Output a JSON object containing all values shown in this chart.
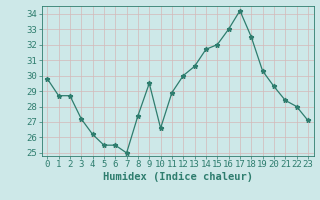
{
  "x": [
    0,
    1,
    2,
    3,
    4,
    5,
    6,
    7,
    8,
    9,
    10,
    11,
    12,
    13,
    14,
    15,
    16,
    17,
    18,
    19,
    20,
    21,
    22,
    23
  ],
  "y": [
    29.8,
    28.7,
    28.7,
    27.2,
    26.2,
    25.5,
    25.5,
    25.0,
    27.4,
    29.5,
    26.6,
    28.9,
    30.0,
    30.6,
    31.7,
    32.0,
    33.0,
    34.2,
    32.5,
    30.3,
    29.3,
    28.4,
    28.0,
    27.1
  ],
  "xlabel": "Humidex (Indice chaleur)",
  "line_color": "#2e7d6e",
  "marker": "*",
  "bg_color": "#cde8e8",
  "grid_color_major": "#b8d0d0",
  "grid_color_minor": "#c8dede",
  "axis_color": "#2e7d6e",
  "tick_color": "#2e7d6e",
  "ylim": [
    24.8,
    34.5
  ],
  "xlim": [
    -0.5,
    23.5
  ],
  "yticks": [
    25,
    26,
    27,
    28,
    29,
    30,
    31,
    32,
    33,
    34
  ],
  "xticks": [
    0,
    1,
    2,
    3,
    4,
    5,
    6,
    7,
    8,
    9,
    10,
    11,
    12,
    13,
    14,
    15,
    16,
    17,
    18,
    19,
    20,
    21,
    22,
    23
  ],
  "tick_fontsize": 6.5,
  "label_fontsize": 7.5
}
